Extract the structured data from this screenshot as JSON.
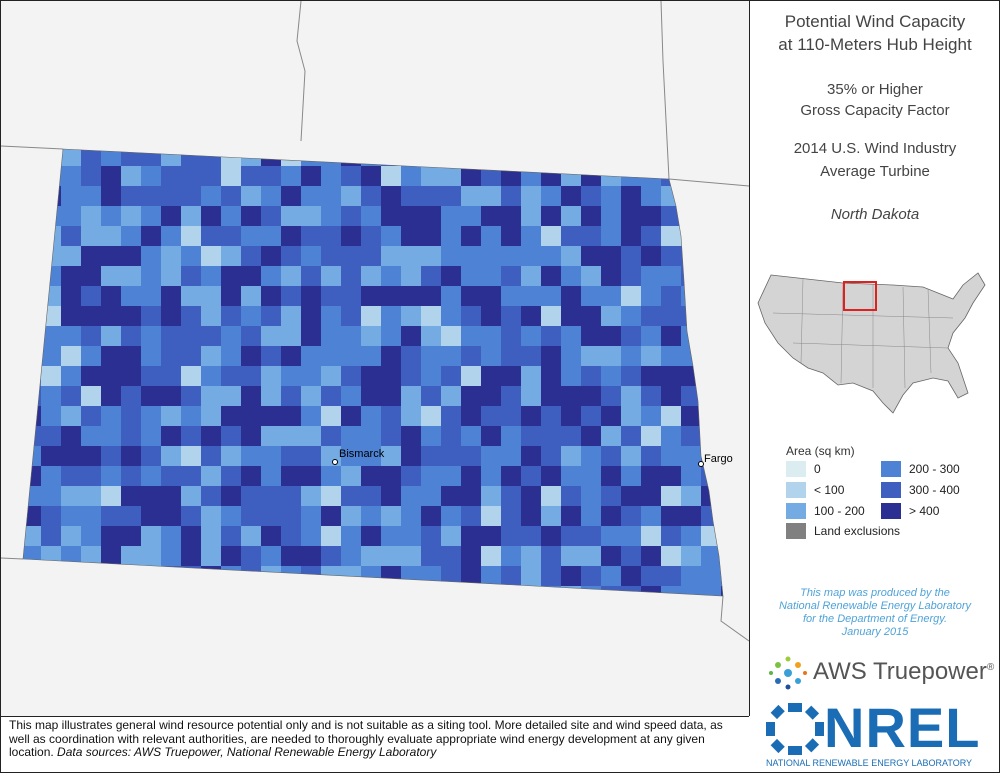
{
  "header": {
    "title_lines": [
      "Potential Wind Capacity",
      "at 110-Meters Hub Height"
    ],
    "subtitle_lines": [
      "35% or Higher",
      "Gross Capacity Factor"
    ],
    "turbine_lines": [
      "2014 U.S. Wind Industry",
      "Average Turbine"
    ],
    "state": "North Dakota"
  },
  "map": {
    "cities": [
      {
        "name": "Bismarck"
      },
      {
        "name": "Fargo"
      }
    ]
  },
  "legend": {
    "title": "Area (sq km)",
    "items": [
      {
        "label": "0",
        "color": "#dcedf2"
      },
      {
        "label": "< 100",
        "color": "#b2d3ec"
      },
      {
        "label": "100 - 200",
        "color": "#74abe2"
      },
      {
        "label": "200 - 300",
        "color": "#4e82d4"
      },
      {
        "label": "300 - 400",
        "color": "#3e5fc0"
      },
      {
        "label": "> 400",
        "color": "#2c2f92"
      }
    ],
    "exclusion": {
      "label": "Land exclusions",
      "color": "#808080"
    }
  },
  "credit_lines": [
    "This map was produced by the",
    "National Renewable Energy Laboratory",
    "for the Department of Energy.",
    "January 2015"
  ],
  "logos": {
    "aws": "AWS Truepower",
    "aws_mark": "®",
    "nrel": "NREL",
    "nrel_sub": "NATIONAL RENEWABLE ENERGY LABORATORY"
  },
  "disclaimer": "This map illustrates general wind resource potential only and is not suitable as a siting tool. More detailed site and wind speed data, as well as coordination with relevant authorities, are needed to thoroughly evaluate appropriate wind energy development at any given location.",
  "sources": "Data sources: AWS Truepower, National Renewable Energy Laboratory"
}
